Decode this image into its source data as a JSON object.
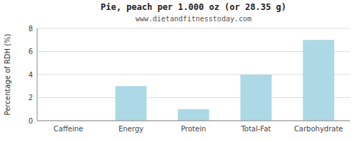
{
  "chart_data": {
    "type": "bar",
    "title": "Pie, peach per 1.000 oz (or 28.35 g)",
    "subtitle": "www.dietandfitnesstoday.com",
    "ylabel": "Percentage of RDH (%)",
    "categories": [
      "Caffeine",
      "Energy",
      "Protein",
      "Total-Fat",
      "Carbohydrate"
    ],
    "values": [
      0,
      3,
      1,
      4,
      7
    ],
    "color": "#add8e6",
    "ylim": [
      0,
      8
    ],
    "yticks": [
      0,
      2,
      4,
      6,
      8
    ],
    "grid": true
  }
}
